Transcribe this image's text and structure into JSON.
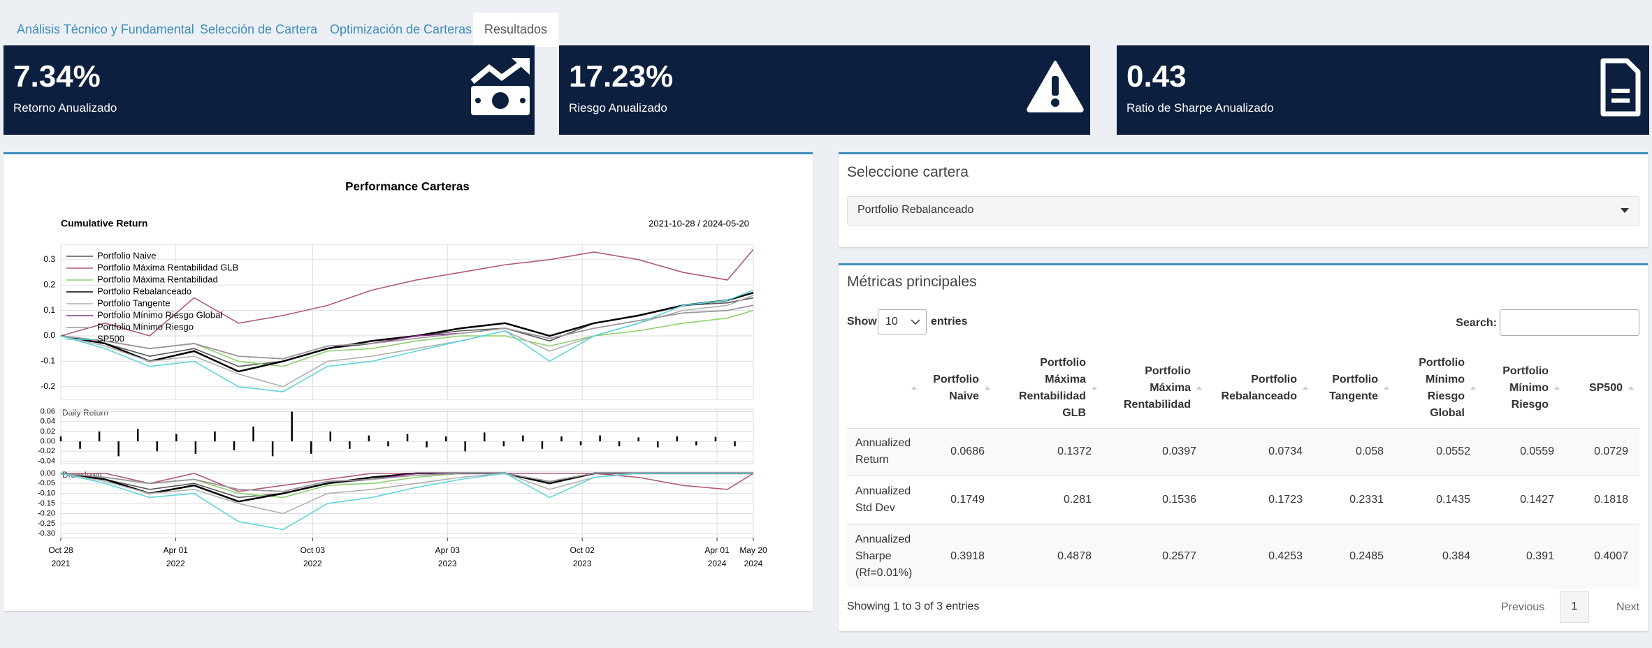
{
  "tabs": [
    "Análisis Técnico y Fundamental",
    "Selección de Cartera",
    "Optimización de Carteras",
    "Resultados"
  ],
  "active_tab": 3,
  "value_boxes": [
    {
      "value": "7.34%",
      "label": "Retorno Anualizado"
    },
    {
      "value": "17.23%",
      "label": "Riesgo Anualizado"
    },
    {
      "value": "0.43",
      "label": "Ratio de Sharpe Anualizado"
    }
  ],
  "selector": {
    "title": "Seleccione cartera",
    "selected": "Portfolio Rebalanceado"
  },
  "table": {
    "title": "Métricas principales",
    "show": "Show",
    "show_entries": 10,
    "entries": "entries",
    "search": "Search:",
    "columns": [
      "Portfolio Naive",
      "Portfolio Máxima Rentabilidad GLB",
      "Portfolio Máxima Rentabilidad",
      "Portfolio Rebalanceado",
      "Portfolio Tangente",
      "Portfolio Mínimo Riesgo Global",
      "Portfolio Mínimo Riesgo",
      "SP500"
    ],
    "rows": [
      {
        "label": "Annualized Return",
        "values": [
          0.0686,
          0.1372,
          0.0397,
          0.0734,
          0.058,
          0.0552,
          0.0559,
          0.0729
        ]
      },
      {
        "label": "Annualized Std Dev",
        "values": [
          0.1749,
          0.281,
          0.1536,
          0.1723,
          0.2331,
          0.1435,
          0.1427,
          0.1818
        ]
      },
      {
        "label": "Annualized Sharpe (Rf=0.01%)",
        "values": [
          0.3918,
          0.4878,
          0.2577,
          0.4253,
          0.2485,
          0.384,
          0.391,
          0.4007
        ]
      }
    ],
    "info": "Showing 1 to 3 of 3 entries",
    "previous": "Previous",
    "page": 1,
    "next": "Next"
  },
  "chart_data": [
    {
      "type": "line",
      "title": "Performance Carteras",
      "panel_title": "Cumulative Return",
      "date_range": "2021-10-28 / 2024-05-20",
      "legend": "upper left",
      "grid": true,
      "x": [
        0,
        60,
        120,
        180,
        240,
        300,
        360,
        420,
        480,
        540,
        600,
        660,
        720,
        780,
        840,
        900,
        935
      ],
      "xlim": [
        0,
        935
      ],
      "ylim": [
        -0.25,
        0.36
      ],
      "yticks": [
        {
          "value": 0.3,
          "label": "0.3"
        },
        {
          "value": 0.2,
          "label": "0.2"
        },
        {
          "value": 0.1,
          "label": "0.1"
        },
        {
          "value": 0,
          "label": "0.0"
        },
        {
          "value": -0.1,
          "label": "-0.1"
        },
        {
          "value": -0.2,
          "label": "-0.2"
        }
      ],
      "series": [
        {
          "name": "Portfolio Naive",
          "color": "#555555",
          "values": [
            0,
            -0.03,
            -0.08,
            -0.05,
            -0.12,
            -0.1,
            -0.05,
            -0.03,
            0,
            0.02,
            0.03,
            -0.02,
            0.05,
            0.08,
            0.12,
            0.13,
            0.15
          ]
        },
        {
          "name": "Portfolio Máxima Rentabilidad GLB",
          "color": "#b05a75",
          "values": [
            0,
            0.05,
            0,
            0.15,
            0.05,
            0.08,
            0.12,
            0.18,
            0.22,
            0.25,
            0.28,
            0.3,
            0.33,
            0.3,
            0.25,
            0.22,
            0.34
          ]
        },
        {
          "name": "Portfolio Máxima Rentabilidad",
          "color": "#8fd16f",
          "values": [
            0,
            -0.02,
            -0.05,
            -0.03,
            -0.1,
            -0.12,
            -0.06,
            -0.05,
            -0.02,
            0,
            0,
            -0.04,
            0,
            0.02,
            0.05,
            0.07,
            0.1
          ]
        },
        {
          "name": "Portfolio Rebalanceado",
          "color": "#000000",
          "values": [
            0,
            -0.03,
            -0.1,
            -0.06,
            -0.14,
            -0.1,
            -0.05,
            -0.02,
            0,
            0.03,
            0.05,
            0,
            0.05,
            0.08,
            0.12,
            0.14,
            0.17
          ]
        },
        {
          "name": "Portfolio Tangente",
          "color": "#b0b0b0",
          "values": [
            0,
            -0.04,
            -0.1,
            -0.08,
            -0.15,
            -0.2,
            -0.1,
            -0.08,
            -0.05,
            -0.02,
            0.02,
            -0.06,
            0,
            0.05,
            0.1,
            0.12,
            0.16
          ]
        },
        {
          "name": "Portfolio Mínimo Riesgo Global",
          "color": "#8b2f8b",
          "values": [
            0,
            -0.02,
            -0.05,
            -0.03,
            -0.08,
            -0.09,
            -0.04,
            -0.03,
            0,
            0.01,
            0.03,
            -0.01,
            0.03,
            0.06,
            0.09,
            0.1,
            0.12
          ]
        },
        {
          "name": "Portfolio Mínimo Riesgo",
          "color": "#9a9a9a",
          "values": [
            0,
            -0.02,
            -0.05,
            -0.03,
            -0.08,
            -0.09,
            -0.04,
            -0.03,
            -0.01,
            0.01,
            0.03,
            -0.01,
            0.03,
            0.06,
            0.09,
            0.1,
            0.12
          ]
        },
        {
          "name": "SP500",
          "color": "#5fd6dc",
          "values": [
            0,
            -0.05,
            -0.12,
            -0.1,
            -0.2,
            -0.22,
            -0.12,
            -0.1,
            -0.06,
            -0.02,
            0.02,
            -0.1,
            0,
            0.05,
            0.12,
            0.14,
            0.18
          ]
        }
      ]
    },
    {
      "type": "bar",
      "title": "Daily Return",
      "color": "#000000",
      "grid": true,
      "x": [
        0,
        26,
        52,
        78,
        104,
        130,
        156,
        182,
        208,
        234,
        260,
        286,
        312,
        338,
        364,
        390,
        416,
        442,
        468,
        494,
        520,
        546,
        572,
        598,
        624,
        650,
        676,
        702,
        728,
        754,
        780,
        806,
        832,
        858,
        884,
        910
      ],
      "xlim": [
        0,
        935
      ],
      "ylim": [
        -0.045,
        0.065
      ],
      "values": [
        0.01,
        -0.015,
        0.02,
        -0.03,
        0.025,
        -0.02,
        0.015,
        -0.025,
        0.02,
        -0.018,
        0.03,
        -0.03,
        0.06,
        -0.025,
        0.02,
        -0.015,
        0.012,
        -0.01,
        0.015,
        -0.012,
        0.01,
        -0.02,
        0.018,
        -0.01,
        0.012,
        -0.015,
        0.01,
        -0.008,
        0.012,
        -0.01,
        0.008,
        -0.012,
        0.01,
        -0.008,
        0.009,
        -0.01
      ],
      "yticks": [
        {
          "value": 0.06,
          "label": "0.06"
        },
        {
          "value": 0.04,
          "label": "0.04"
        },
        {
          "value": 0.02,
          "label": "0.02"
        },
        {
          "value": 0,
          "label": "0.00"
        },
        {
          "value": -0.02,
          "label": "-0.02"
        },
        {
          "value": -0.04,
          "label": "-0.04"
        }
      ]
    },
    {
      "type": "line",
      "title": "Drawdown",
      "grid": true,
      "x": [
        0,
        60,
        120,
        180,
        240,
        300,
        360,
        420,
        480,
        540,
        600,
        660,
        720,
        780,
        840,
        900,
        935
      ],
      "xlim": [
        0,
        935
      ],
      "ylim": [
        -0.32,
        0.01
      ],
      "yticks": [
        {
          "value": 0,
          "label": "0.00"
        },
        {
          "value": -0.05,
          "label": "-0.05"
        },
        {
          "value": -0.1,
          "label": "-0.10"
        },
        {
          "value": -0.15,
          "label": "-0.15"
        },
        {
          "value": -0.2,
          "label": "-0.20"
        },
        {
          "value": -0.25,
          "label": "-0.25"
        },
        {
          "value": -0.3,
          "label": "-0.30"
        }
      ],
      "xticks": [
        {
          "value": 0,
          "label": "Oct 28"
        },
        {
          "value": 155,
          "label": "Apr 01"
        },
        {
          "value": 340,
          "label": "Oct 03"
        },
        {
          "value": 522,
          "label": "Apr 03"
        },
        {
          "value": 704,
          "label": "Oct 02"
        },
        {
          "value": 886,
          "label": "Apr 01"
        },
        {
          "value": 935,
          "label": "May 20"
        }
      ],
      "xtick_years": [
        "2021",
        "2022",
        "2022",
        "2023",
        "2023",
        "2024",
        "2024"
      ],
      "series": [
        {
          "color": "#555555",
          "values": [
            0,
            -0.03,
            -0.08,
            -0.05,
            -0.12,
            -0.1,
            -0.05,
            -0.03,
            0,
            0,
            0,
            -0.05,
            0,
            0,
            0,
            0,
            0
          ]
        },
        {
          "color": "#b05a75",
          "values": [
            0,
            0,
            -0.05,
            0,
            -0.09,
            -0.06,
            -0.03,
            0,
            0,
            0,
            0,
            0,
            0,
            -0.02,
            -0.06,
            -0.08,
            0
          ]
        },
        {
          "color": "#8fd16f",
          "values": [
            0,
            -0.02,
            -0.05,
            -0.03,
            -0.1,
            -0.12,
            -0.06,
            -0.05,
            -0.02,
            0,
            0,
            -0.04,
            0,
            0,
            0,
            0,
            0
          ]
        },
        {
          "color": "#000000",
          "values": [
            0,
            -0.03,
            -0.1,
            -0.06,
            -0.14,
            -0.1,
            -0.05,
            -0.02,
            0,
            0,
            0,
            -0.05,
            0,
            0,
            0,
            0,
            0
          ]
        },
        {
          "color": "#b0b0b0",
          "values": [
            0,
            -0.04,
            -0.1,
            -0.08,
            -0.15,
            -0.2,
            -0.1,
            -0.08,
            -0.05,
            -0.02,
            0,
            -0.08,
            -0.02,
            0,
            0,
            0,
            0
          ]
        },
        {
          "color": "#8b2f8b",
          "values": [
            0,
            -0.02,
            -0.05,
            -0.03,
            -0.08,
            -0.09,
            -0.04,
            -0.03,
            0,
            0,
            0,
            -0.04,
            0,
            0,
            0,
            0,
            0
          ]
        },
        {
          "color": "#9a9a9a",
          "values": [
            0,
            -0.02,
            -0.05,
            -0.03,
            -0.08,
            -0.09,
            -0.04,
            -0.03,
            -0.01,
            0,
            0,
            -0.04,
            0,
            0,
            0,
            0,
            0
          ]
        },
        {
          "color": "#5fd6dc",
          "values": [
            0,
            -0.05,
            -0.12,
            -0.1,
            -0.24,
            -0.28,
            -0.15,
            -0.12,
            -0.07,
            -0.03,
            0,
            -0.12,
            -0.02,
            0,
            0,
            0,
            0
          ]
        }
      ]
    }
  ]
}
